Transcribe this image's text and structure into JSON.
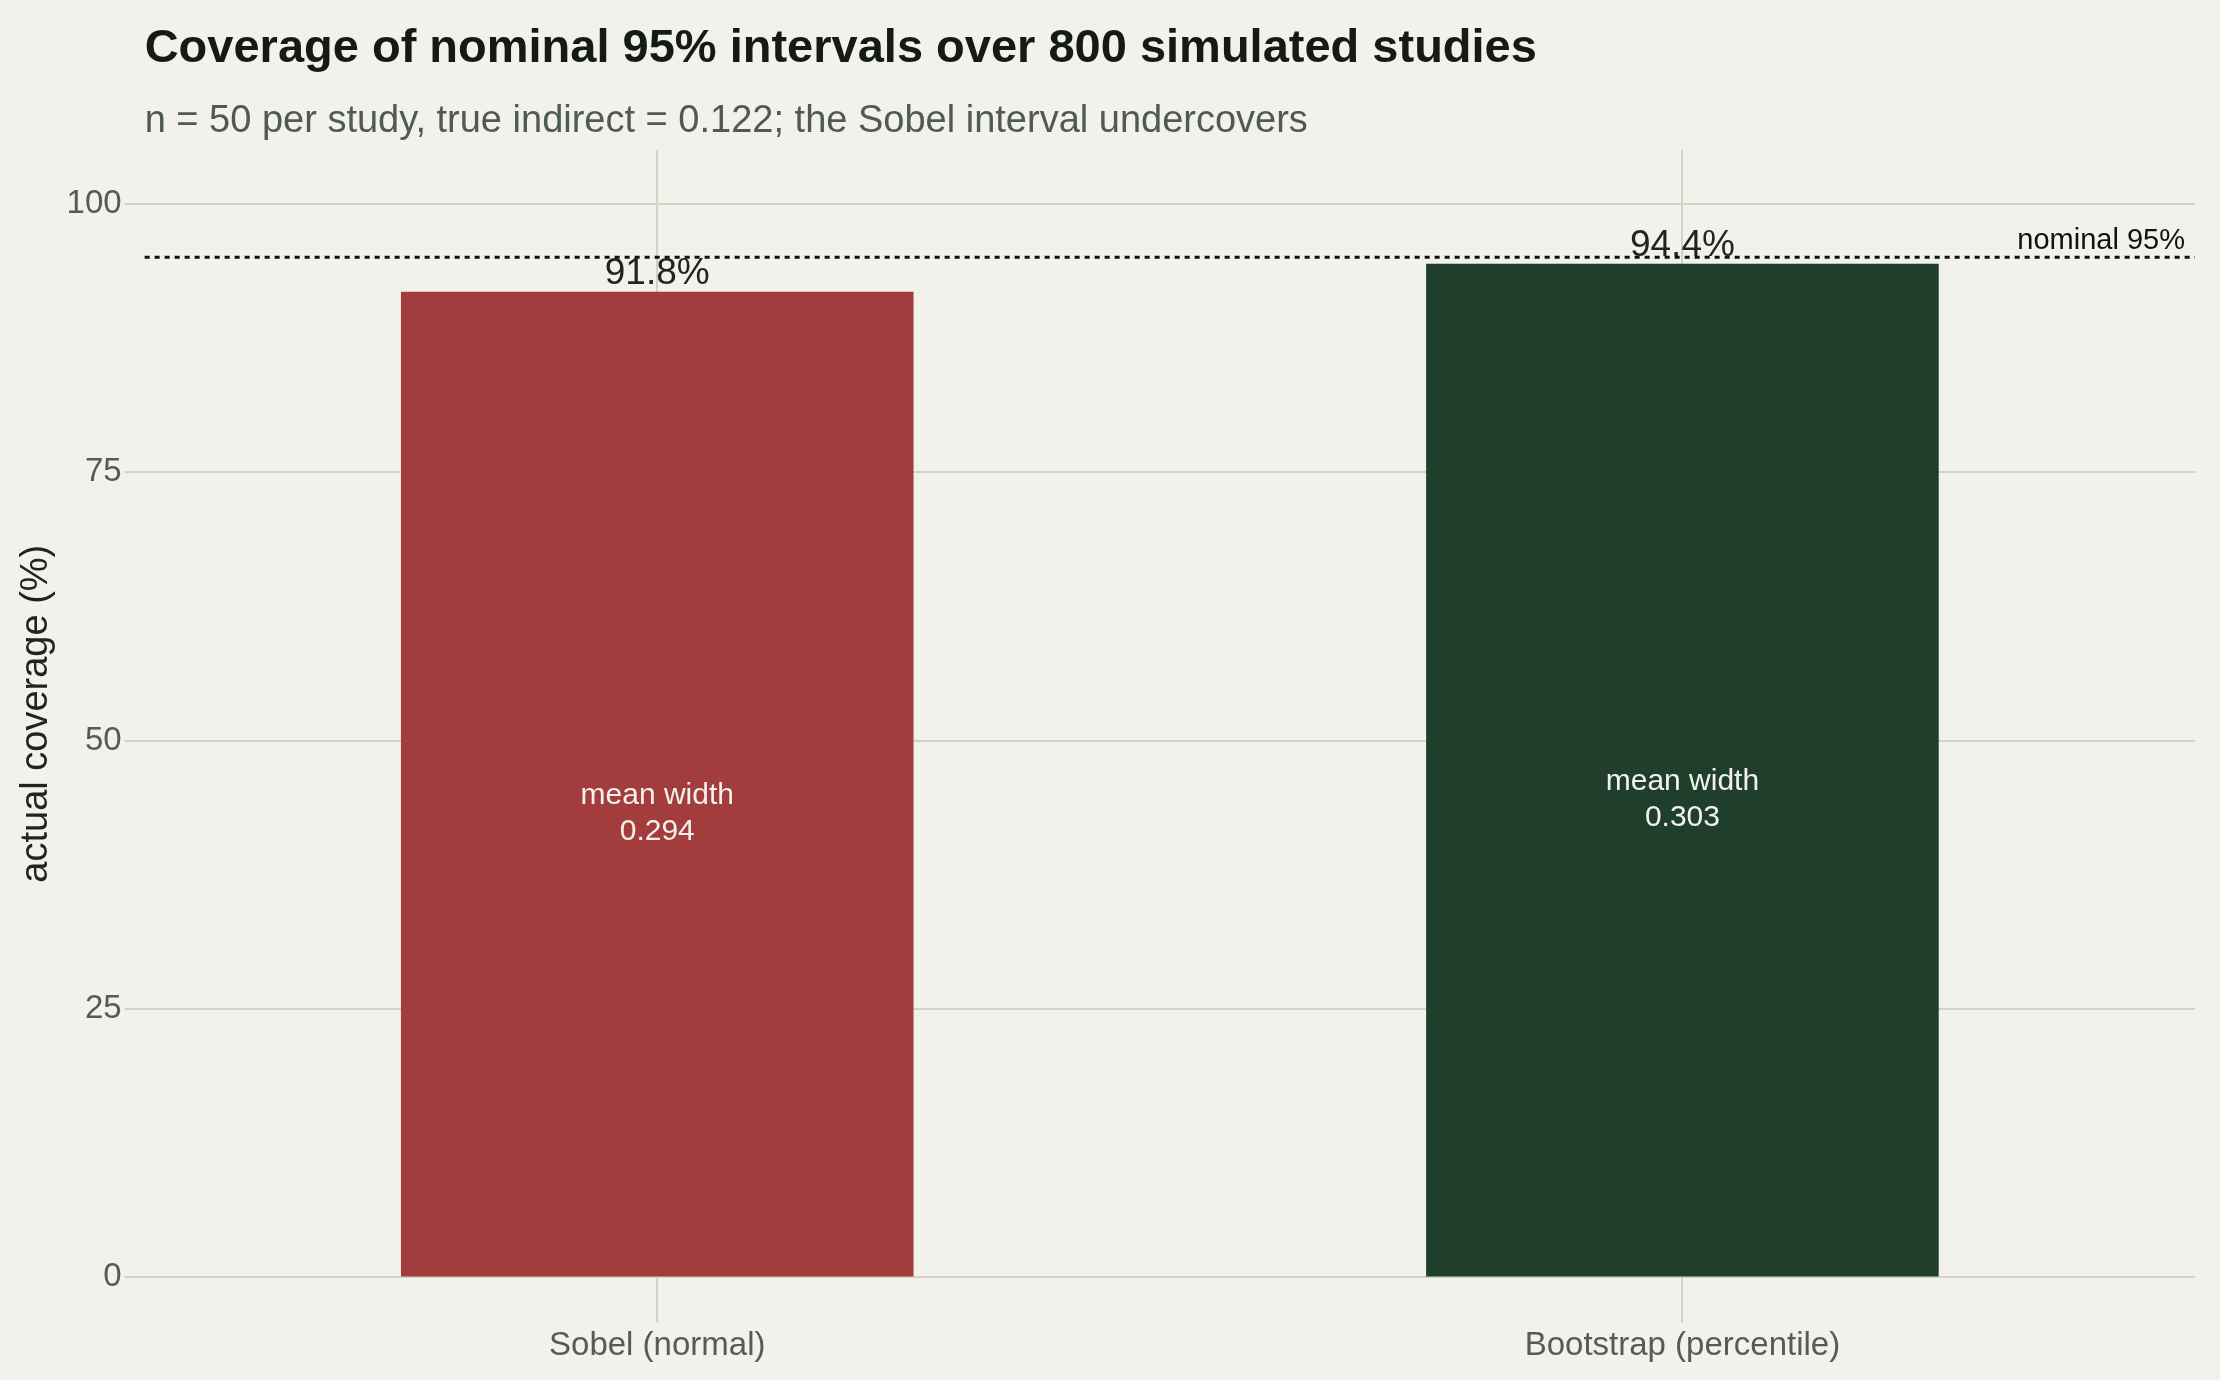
{
  "chart_data": {
    "type": "bar",
    "title": "Coverage of nominal 95% intervals over 800 simulated studies",
    "subtitle": "n = 50 per study, true indirect = 0.122; the Sobel interval undercovers",
    "ylabel": "actual coverage (%)",
    "categories": [
      "Sobel (normal)",
      "Bootstrap (percentile)"
    ],
    "values": [
      91.8,
      94.4
    ],
    "colors": [
      "#a33d3d",
      "#1f3f2c"
    ],
    "value_labels": [
      "91.8%",
      "94.4%"
    ],
    "ylim": [
      0,
      105
    ],
    "yticks": [
      0,
      25,
      50,
      75,
      100
    ],
    "grid": true,
    "ref_lines": [
      {
        "axis": "y",
        "value": 95,
        "label": "nominal 95%",
        "color": "#111111",
        "line_style": "dotted"
      }
    ],
    "annotations": [
      "mean width\n0.294",
      "mean width\n0.303"
    ]
  }
}
